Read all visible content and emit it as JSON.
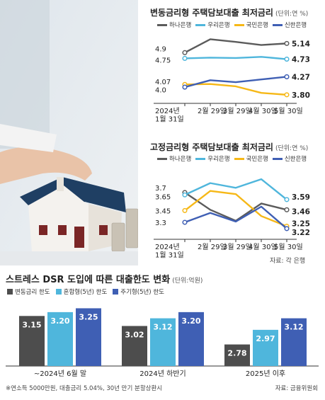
{
  "chart_data": [
    {
      "type": "line",
      "title": "변동금리형 주택담보대출 최저금리",
      "unit": "(단위:연 %)",
      "x": [
        "2024년\n1월 31일",
        "2월 29일",
        "3월 29일",
        "4월 30일",
        "5월 30일"
      ],
      "series": [
        {
          "name": "하나은행",
          "color": "#5b5b5b",
          "values": [
            4.9,
            5.25,
            5.18,
            5.1,
            5.14
          ],
          "labels": {
            "0": "4.9",
            "4": "5.14"
          }
        },
        {
          "name": "우리은행",
          "color": "#4fb6dc",
          "values": [
            4.75,
            4.77,
            4.76,
            4.79,
            4.73
          ],
          "labels": {
            "0": "4.75",
            "4": "4.73"
          }
        },
        {
          "name": "국민은행",
          "color": "#f6b817",
          "values": [
            4.07,
            4.08,
            4.02,
            3.85,
            3.8
          ],
          "labels": {
            "4": "3.80"
          }
        },
        {
          "name": "신한은행",
          "color": "#3f5fb4",
          "values": [
            4.0,
            4.18,
            4.13,
            4.2,
            4.27
          ],
          "labels": {
            "0": "4.07\n4.0",
            "4": "4.27"
          }
        }
      ],
      "ylim": [
        3.65,
        5.35
      ]
    },
    {
      "type": "line",
      "title": "고정금리형 주택담보대출 최저금리",
      "unit": "(단위:연 %)",
      "x": [
        "2024년\n1월 31일",
        "2월 29일",
        "3월 29일",
        "4월 30일",
        "5월 30일"
      ],
      "series": [
        {
          "name": "하나은행",
          "color": "#5b5b5b",
          "values": [
            3.68,
            3.46,
            3.32,
            3.54,
            3.46
          ],
          "labels": {
            "0": "3.7",
            "4": "3.46"
          }
        },
        {
          "name": "우리은행",
          "color": "#4fb6dc",
          "values": [
            3.65,
            3.8,
            3.74,
            3.85,
            3.59
          ],
          "labels": {
            "0": "3.65",
            "4": "3.59"
          }
        },
        {
          "name": "국민은행",
          "color": "#f6b817",
          "values": [
            3.45,
            3.7,
            3.66,
            3.38,
            3.25
          ],
          "labels": {
            "0": "3.45",
            "4": "3.25"
          }
        },
        {
          "name": "신한은행",
          "color": "#3f5fb4",
          "values": [
            3.3,
            3.42,
            3.31,
            3.5,
            3.22
          ],
          "labels": {
            "0": "3.3",
            "4": "3.22"
          }
        }
      ],
      "ylim": [
        3.12,
        3.95
      ],
      "source": "자료: 각 은행"
    },
    {
      "type": "bar",
      "title": "스트레스 DSR 도입에 따른 대출한도 변화",
      "unit": "(단위:억원)",
      "categories": [
        "~2024년 6월 말",
        "2024년 하반기",
        "2025년 이후"
      ],
      "series": [
        {
          "name": "변동금리 한도",
          "color": "#4d4d4d",
          "values": [
            3.15,
            3.02,
            2.78
          ]
        },
        {
          "name": "혼합형(5년) 한도",
          "color": "#4fb6dc",
          "values": [
            3.2,
            3.12,
            2.97
          ]
        },
        {
          "name": "주기형(5년) 한도",
          "color": "#3f5fb4",
          "values": [
            3.25,
            3.2,
            3.12
          ]
        }
      ],
      "ylim": [
        2.5,
        3.3
      ],
      "footnote": "※연소득 5000만원, 대출금리 5.04%, 30년 만기 분할상환시",
      "source": "자료: 금융위원회"
    }
  ]
}
